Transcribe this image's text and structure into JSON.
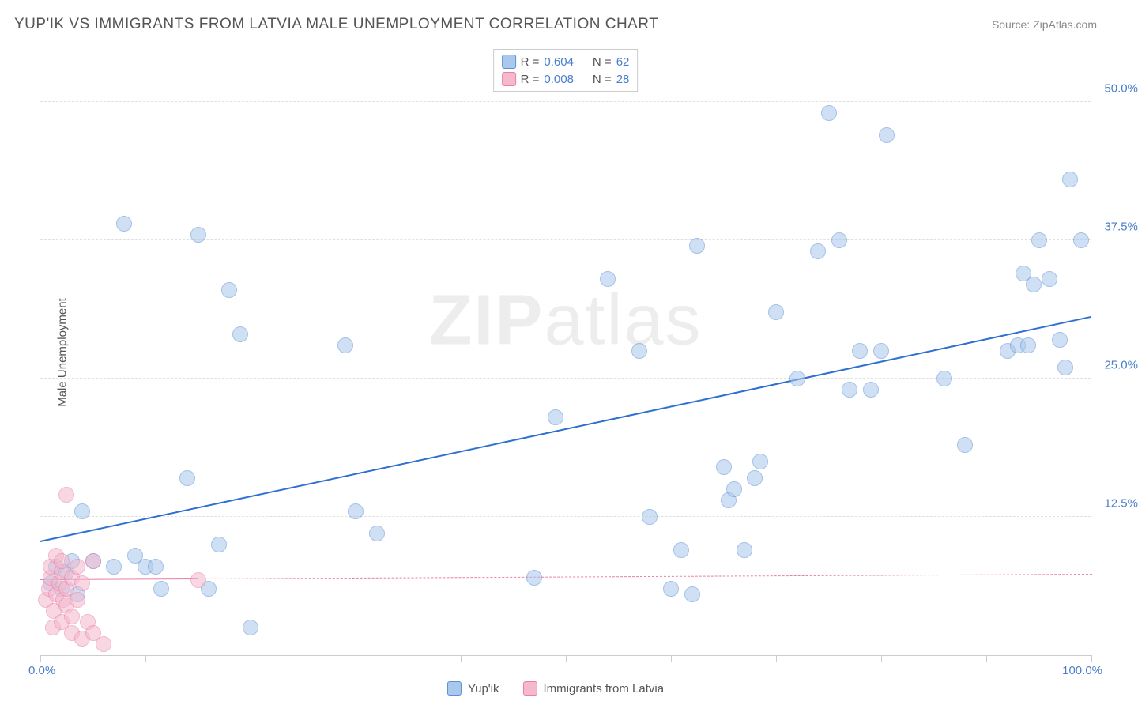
{
  "title": "YUP'IK VS IMMIGRANTS FROM LATVIA MALE UNEMPLOYMENT CORRELATION CHART",
  "source_label": "Source: ZipAtlas.com",
  "y_axis_title": "Male Unemployment",
  "watermark_bold": "ZIP",
  "watermark_rest": "atlas",
  "chart": {
    "type": "scatter",
    "background_color": "#ffffff",
    "grid_color": "#e0e0e0",
    "axis_color": "#cccccc",
    "xlim": [
      0,
      100
    ],
    "ylim": [
      0,
      55
    ],
    "x_tick_positions": [
      0,
      10,
      20,
      30,
      40,
      50,
      60,
      70,
      80,
      90,
      100
    ],
    "x_tick_labels": {
      "0": "0.0%",
      "100": "100.0%"
    },
    "y_gridlines": [
      12.5,
      25.0,
      37.5,
      50.0
    ],
    "y_tick_labels": [
      "12.5%",
      "25.0%",
      "37.5%",
      "50.0%"
    ],
    "label_color": "#4a7ec9",
    "label_fontsize": 15,
    "title_color": "#555555",
    "title_fontsize": 19,
    "marker_radius": 10,
    "marker_opacity": 0.55,
    "series": [
      {
        "name": "Yup'ik",
        "fill_color": "#a8c8ec",
        "stroke_color": "#5b8fd6",
        "trend": {
          "x1": 0,
          "y1": 10.2,
          "x2": 100,
          "y2": 30.5,
          "color": "#2e6fd1",
          "width": 2,
          "style": "solid"
        },
        "R": "0.604",
        "N": "62",
        "points": [
          [
            1,
            6.5
          ],
          [
            1.5,
            8
          ],
          [
            2,
            6
          ],
          [
            2.5,
            7.5
          ],
          [
            3,
            8.5
          ],
          [
            3.5,
            5.5
          ],
          [
            4,
            13
          ],
          [
            5,
            8.5
          ],
          [
            7,
            8
          ],
          [
            8,
            39
          ],
          [
            9,
            9
          ],
          [
            10,
            8
          ],
          [
            11,
            8
          ],
          [
            11.5,
            6
          ],
          [
            14,
            16
          ],
          [
            15,
            38
          ],
          [
            16,
            6
          ],
          [
            17,
            10
          ],
          [
            18,
            33
          ],
          [
            19,
            29
          ],
          [
            20,
            2.5
          ],
          [
            29,
            28
          ],
          [
            30,
            13
          ],
          [
            32,
            11
          ],
          [
            47,
            7
          ],
          [
            49,
            21.5
          ],
          [
            54,
            34
          ],
          [
            57,
            27.5
          ],
          [
            58,
            12.5
          ],
          [
            60,
            6
          ],
          [
            61,
            9.5
          ],
          [
            62,
            5.5
          ],
          [
            62.5,
            37
          ],
          [
            65,
            17
          ],
          [
            65.5,
            14
          ],
          [
            66,
            15
          ],
          [
            67,
            9.5
          ],
          [
            68,
            16
          ],
          [
            68.5,
            17.5
          ],
          [
            70,
            31
          ],
          [
            72,
            25
          ],
          [
            74,
            36.5
          ],
          [
            75,
            49
          ],
          [
            76,
            37.5
          ],
          [
            77,
            24
          ],
          [
            78,
            27.5
          ],
          [
            79,
            24
          ],
          [
            80,
            27.5
          ],
          [
            80.5,
            47
          ],
          [
            86,
            25
          ],
          [
            88,
            19
          ],
          [
            92,
            27.5
          ],
          [
            93,
            28
          ],
          [
            93.5,
            34.5
          ],
          [
            94,
            28
          ],
          [
            94.5,
            33.5
          ],
          [
            95,
            37.5
          ],
          [
            96,
            34
          ],
          [
            97,
            28.5
          ],
          [
            97.5,
            26
          ],
          [
            98,
            43
          ],
          [
            99,
            37.5
          ]
        ]
      },
      {
        "name": "Immigrants from Latvia",
        "fill_color": "#f5b8cc",
        "stroke_color": "#e87fa8",
        "trend": {
          "x1": 0,
          "y1": 6.8,
          "x2": 100,
          "y2": 7.3,
          "color": "#e87fa8",
          "width": 1.5,
          "style": "dashed"
        },
        "trend_solid_until_x": 15,
        "R": "0.008",
        "N": "28",
        "points": [
          [
            0.5,
            5
          ],
          [
            0.8,
            6
          ],
          [
            1,
            7
          ],
          [
            1,
            8
          ],
          [
            1.2,
            2.5
          ],
          [
            1.3,
            4
          ],
          [
            1.5,
            5.5
          ],
          [
            1.5,
            9
          ],
          [
            1.8,
            6.5
          ],
          [
            2,
            3
          ],
          [
            2,
            7.5
          ],
          [
            2,
            8.5
          ],
          [
            2.2,
            5
          ],
          [
            2.5,
            4.5
          ],
          [
            2.5,
            6
          ],
          [
            2.5,
            14.5
          ],
          [
            3,
            2
          ],
          [
            3,
            3.5
          ],
          [
            3,
            7
          ],
          [
            3.5,
            5
          ],
          [
            3.5,
            8
          ],
          [
            4,
            1.5
          ],
          [
            4,
            6.5
          ],
          [
            4.5,
            3
          ],
          [
            5,
            2
          ],
          [
            5,
            8.5
          ],
          [
            6,
            1
          ],
          [
            15,
            6.8
          ]
        ]
      }
    ]
  },
  "stats_legend": {
    "rows": [
      {
        "swatch_fill": "#a8c8ec",
        "swatch_stroke": "#5b8fd6",
        "R": "0.604",
        "N": "62"
      },
      {
        "swatch_fill": "#f5b8cc",
        "swatch_stroke": "#e87fa8",
        "R": "0.008",
        "N": "28"
      }
    ],
    "R_label": "R = ",
    "N_label": "N = "
  },
  "bottom_legend": {
    "items": [
      {
        "swatch_fill": "#a8c8ec",
        "swatch_stroke": "#5b8fd6",
        "label": "Yup'ik"
      },
      {
        "swatch_fill": "#f5b8cc",
        "swatch_stroke": "#e87fa8",
        "label": "Immigrants from Latvia"
      }
    ]
  }
}
